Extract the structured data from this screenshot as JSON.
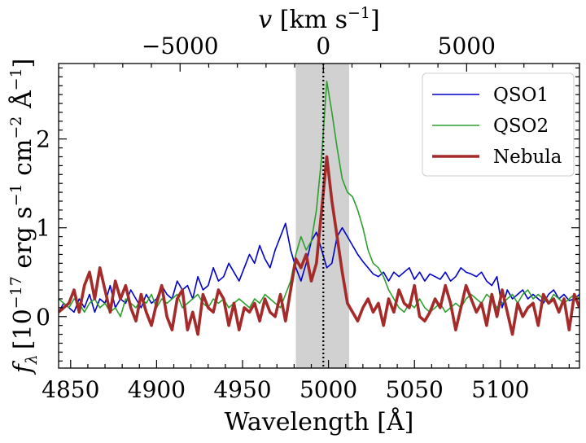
{
  "chart_data": {
    "type": "line",
    "title": "",
    "xlabel": "Wavelength [Å]",
    "ylabel": "f_λ [10^-17 erg s^-1 cm^-2 Å^-1]",
    "ylabel_parts": {
      "sym": "f",
      "sub": "λ",
      "t1": "[10",
      "s1": "−17",
      "t2": " erg s",
      "s2": "−1",
      "t3": " cm",
      "s3": "−2",
      "t4": " Å",
      "s4": "−1",
      "t5": "]"
    },
    "top_xlabel": "v [km s^-1]",
    "top_xlabel_parts": {
      "sym": "v",
      "t1": "[km s",
      "s1": "−1",
      "t2": "]"
    },
    "xlim": [
      4843,
      5146
    ],
    "ylim": [
      -0.58,
      2.85
    ],
    "x_ticks": [
      4850,
      4900,
      4950,
      5000,
      5050,
      5100
    ],
    "x_tick_labels": [
      "4850",
      "4900",
      "4950",
      "5000",
      "5050",
      "5100"
    ],
    "y_ticks": [
      0,
      1,
      2
    ],
    "y_tick_labels": [
      "0",
      "1",
      "2"
    ],
    "top_ticks_velocity": [
      -5000,
      0,
      5000
    ],
    "top_tick_labels": [
      "−5000",
      "0",
      "5000"
    ],
    "rest_wavelength": 4997,
    "shaded_band": [
      4981,
      5012
    ],
    "vertical_line": 4997,
    "legend_position": "top-right",
    "series": [
      {
        "name": "QSO1",
        "color": "#0000cc",
        "width": 1.6,
        "x": [
          4843,
          4846,
          4849,
          4852,
          4855,
          4858,
          4861,
          4864,
          4867,
          4870,
          4873,
          4876,
          4879,
          4882,
          4885,
          4888,
          4891,
          4894,
          4897,
          4900,
          4903,
          4906,
          4909,
          4912,
          4915,
          4918,
          4921,
          4924,
          4927,
          4930,
          4933,
          4936,
          4939,
          4942,
          4945,
          4948,
          4951,
          4954,
          4957,
          4960,
          4963,
          4966,
          4969,
          4972,
          4975,
          4978,
          4981,
          4984,
          4987,
          4990,
          4993,
          4996,
          4999,
          5002,
          5005,
          5008,
          5011,
          5014,
          5017,
          5020,
          5023,
          5026,
          5029,
          5032,
          5035,
          5038,
          5041,
          5044,
          5047,
          5050,
          5053,
          5056,
          5059,
          5062,
          5065,
          5068,
          5071,
          5074,
          5077,
          5080,
          5083,
          5086,
          5089,
          5092,
          5095,
          5098,
          5101,
          5104,
          5107,
          5110,
          5113,
          5116,
          5119,
          5122,
          5125,
          5128,
          5131,
          5134,
          5137,
          5140,
          5143,
          5146
        ],
        "y": [
          0.05,
          0.15,
          0.1,
          0.05,
          0.2,
          0.1,
          0.25,
          0.05,
          0.2,
          0.15,
          0.35,
          0.1,
          0.2,
          0.15,
          0.3,
          0.2,
          0.1,
          0.25,
          0.15,
          0.2,
          0.35,
          0.25,
          0.2,
          0.4,
          0.3,
          0.35,
          0.2,
          0.45,
          0.3,
          0.35,
          0.55,
          0.4,
          0.45,
          0.6,
          0.5,
          0.4,
          0.55,
          0.7,
          0.6,
          0.8,
          0.65,
          0.55,
          0.75,
          0.9,
          1.05,
          0.75,
          0.55,
          0.4,
          0.6,
          0.85,
          0.95,
          0.75,
          0.55,
          0.6,
          0.9,
          1.0,
          0.9,
          0.8,
          0.7,
          0.62,
          0.55,
          0.48,
          0.45,
          0.5,
          0.4,
          0.5,
          0.45,
          0.5,
          0.55,
          0.42,
          0.5,
          0.4,
          0.48,
          0.45,
          0.42,
          0.5,
          0.4,
          0.45,
          0.55,
          0.5,
          0.48,
          0.45,
          0.5,
          0.4,
          0.35,
          0.45,
          0.1,
          0.3,
          0.2,
          0.25,
          0.3,
          0.2,
          0.25,
          0.2,
          0.15,
          0.25,
          0.3,
          0.2,
          0.25,
          0.18,
          0.2,
          0.25
        ]
      },
      {
        "name": "QSO2",
        "color": "#2ca02c",
        "width": 1.6,
        "x": [
          4843,
          4846,
          4849,
          4852,
          4855,
          4858,
          4861,
          4864,
          4867,
          4870,
          4873,
          4876,
          4879,
          4882,
          4885,
          4888,
          4891,
          4894,
          4897,
          4900,
          4903,
          4906,
          4909,
          4912,
          4915,
          4918,
          4921,
          4924,
          4927,
          4930,
          4933,
          4936,
          4939,
          4942,
          4945,
          4948,
          4951,
          4954,
          4957,
          4960,
          4963,
          4966,
          4969,
          4972,
          4975,
          4978,
          4981,
          4984,
          4987,
          4990,
          4993,
          4996,
          4999,
          5002,
          5005,
          5008,
          5011,
          5014,
          5017,
          5020,
          5023,
          5026,
          5029,
          5032,
          5035,
          5038,
          5041,
          5044,
          5047,
          5050,
          5053,
          5056,
          5059,
          5062,
          5065,
          5068,
          5071,
          5074,
          5077,
          5080,
          5083,
          5086,
          5089,
          5092,
          5095,
          5098,
          5101,
          5104,
          5107,
          5110,
          5113,
          5116,
          5119,
          5122,
          5125,
          5128,
          5131,
          5134,
          5137,
          5140,
          5143,
          5146
        ],
        "y": [
          0.2,
          0.15,
          0.1,
          0.2,
          0.15,
          0.05,
          0.15,
          0.2,
          0.1,
          0.15,
          0.05,
          0.1,
          0.0,
          0.2,
          0.15,
          0.1,
          0.2,
          0.15,
          0.25,
          0.1,
          0.2,
          0.15,
          0.2,
          0.25,
          0.1,
          0.15,
          0.2,
          0.25,
          0.15,
          0.1,
          0.2,
          0.15,
          0.2,
          0.1,
          0.15,
          0.2,
          0.15,
          0.1,
          0.2,
          0.15,
          0.25,
          0.2,
          0.15,
          0.1,
          0.25,
          0.4,
          0.7,
          0.9,
          0.75,
          0.85,
          1.2,
          1.8,
          2.65,
          2.3,
          1.9,
          1.55,
          1.4,
          1.35,
          1.2,
          1.0,
          0.75,
          0.6,
          0.55,
          0.45,
          0.3,
          0.2,
          0.1,
          0.05,
          0.15,
          0.1,
          0.2,
          0.1,
          0.05,
          0.1,
          0.15,
          0.05,
          0.1,
          0.15,
          0.1,
          0.2,
          0.25,
          0.2,
          0.15,
          0.25,
          0.2,
          0.1,
          0.15,
          0.2,
          0.25,
          0.15,
          0.25,
          0.3,
          0.2,
          0.25,
          0.2,
          0.15,
          0.25,
          0.2,
          0.15,
          0.2,
          0.25,
          0.2
        ]
      },
      {
        "name": "Nebula",
        "color": "#a52a2a",
        "width": 3.6,
        "x": [
          4843,
          4846,
          4849,
          4852,
          4855,
          4858,
          4861,
          4864,
          4867,
          4870,
          4873,
          4876,
          4879,
          4882,
          4885,
          4888,
          4891,
          4894,
          4897,
          4900,
          4903,
          4906,
          4909,
          4912,
          4915,
          4918,
          4921,
          4924,
          4927,
          4930,
          4933,
          4936,
          4939,
          4942,
          4945,
          4948,
          4951,
          4954,
          4957,
          4960,
          4963,
          4966,
          4969,
          4972,
          4975,
          4978,
          4981,
          4984,
          4987,
          4990,
          4993,
          4996,
          4999,
          5002,
          5005,
          5008,
          5011,
          5014,
          5017,
          5020,
          5023,
          5026,
          5029,
          5032,
          5035,
          5038,
          5041,
          5044,
          5047,
          5050,
          5053,
          5056,
          5059,
          5062,
          5065,
          5068,
          5071,
          5074,
          5077,
          5080,
          5083,
          5086,
          5089,
          5092,
          5095,
          5098,
          5101,
          5104,
          5107,
          5110,
          5113,
          5116,
          5119,
          5122,
          5125,
          5128,
          5131,
          5134,
          5137,
          5140,
          5143,
          5146
        ],
        "y": [
          0.05,
          0.1,
          0.15,
          0.3,
          0.05,
          0.35,
          0.5,
          0.2,
          0.55,
          0.3,
          0.05,
          0.4,
          0.2,
          0.35,
          0.1,
          -0.05,
          0.25,
          0.05,
          -0.1,
          0.15,
          0.35,
          0.0,
          -0.15,
          0.2,
          0.3,
          -0.15,
          0.05,
          -0.2,
          0.25,
          0.1,
          0.05,
          0.3,
          0.2,
          -0.1,
          0.15,
          -0.15,
          0.1,
          0.05,
          0.15,
          -0.05,
          0.2,
          0.05,
          0.0,
          0.25,
          -0.05,
          0.3,
          0.65,
          0.55,
          0.7,
          0.4,
          0.6,
          1.2,
          1.8,
          1.3,
          0.9,
          0.5,
          0.15,
          0.05,
          -0.05,
          0.1,
          0.2,
          0.05,
          0.15,
          -0.1,
          0.2,
          0.05,
          0.3,
          0.15,
          0.1,
          0.35,
          0.0,
          -0.05,
          0.05,
          0.2,
          0.1,
          0.35,
          0.15,
          -0.15,
          0.1,
          0.35,
          0.2,
          0.05,
          0.15,
          -0.1,
          0.25,
          0.0,
          0.3,
          0.05,
          -0.2,
          0.15,
          0.0,
          0.1,
          0.15,
          -0.1,
          0.25,
          0.15,
          0.2,
          0.05,
          0.2,
          -0.15,
          0.25,
          0.1
        ]
      }
    ]
  }
}
